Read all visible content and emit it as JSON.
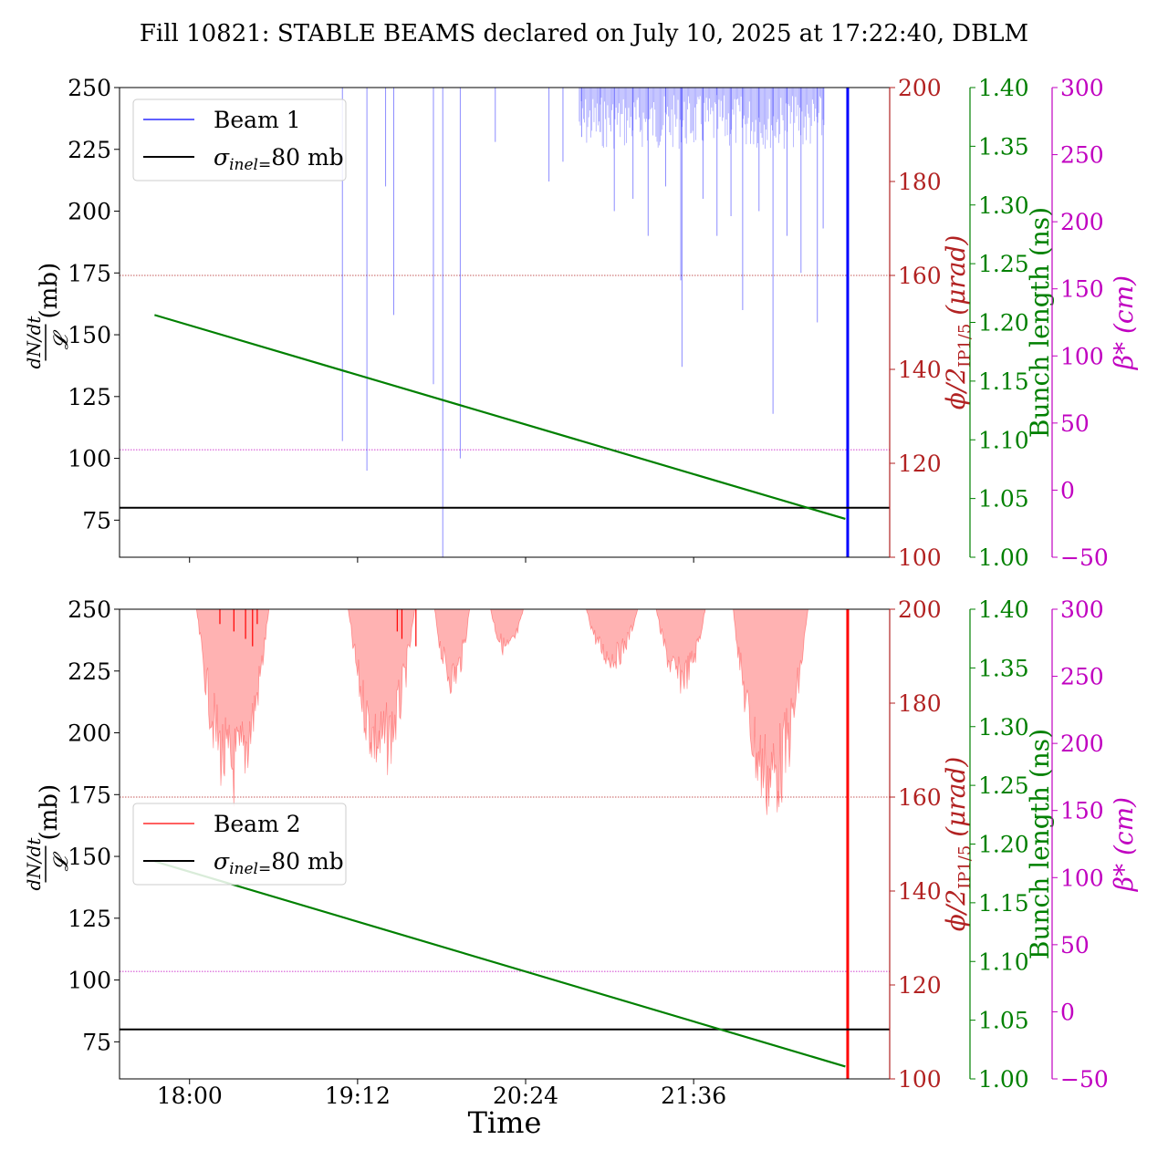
{
  "figure": {
    "title": "Fill 10821: STABLE BEAMS declared on July 10, 2025 at 17:22:40, DBLM",
    "xlabel": "Time"
  },
  "colors": {
    "beam1": "#0000ff",
    "beam2": "#ff0000",
    "fit": "#008000",
    "sigma": "#000000",
    "axis_phi": "#b22222",
    "axis_bunch": "#008000",
    "axis_beta": "#c000c0"
  },
  "chart_data": [
    {
      "type": "line",
      "panel": "top",
      "ylabel_num": "dN/dt",
      "ylabel_den": "𝓛",
      "ylabel_unit": "(mb)",
      "ylim": [
        60,
        250
      ],
      "yticks": [
        75,
        100,
        125,
        150,
        175,
        200,
        225,
        250
      ],
      "xlim_minutes": [
        1050,
        1380
      ],
      "xticks": [
        {
          "label": "18:00",
          "minutes": 1080
        },
        {
          "label": "19:12",
          "minutes": 1152
        },
        {
          "label": "20:24",
          "minutes": 1224
        },
        {
          "label": "21:36",
          "minutes": 1296
        }
      ],
      "legend": {
        "location": "upper left",
        "entries": [
          "Beam 1",
          "σinel=80 mb"
        ]
      },
      "series": [
        {
          "name": "Beam 1",
          "role": "beam",
          "color": "#0000ff",
          "style": "spiky",
          "spikes": [
            {
              "t": 1145.5,
              "y": 107
            },
            {
              "t": 1156.0,
              "y": 95
            },
            {
              "t": 1164.0,
              "y": 210
            },
            {
              "t": 1167.5,
              "y": 158
            },
            {
              "t": 1184.5,
              "y": 130
            },
            {
              "t": 1188.5,
              "y": 60
            },
            {
              "t": 1196.0,
              "y": 100
            },
            {
              "t": 1211.0,
              "y": 228
            },
            {
              "t": 1234.0,
              "y": 212
            },
            {
              "t": 1240.0,
              "y": 220
            },
            {
              "t": 1248.0,
              "y": 230
            },
            {
              "t": 1256.0,
              "y": 232
            },
            {
              "t": 1262.0,
              "y": 200
            },
            {
              "t": 1270.0,
              "y": 205
            },
            {
              "t": 1276.5,
              "y": 190
            },
            {
              "t": 1284.0,
              "y": 210
            },
            {
              "t": 1290.5,
              "y": 172
            },
            {
              "t": 1291.0,
              "y": 137
            },
            {
              "t": 1300.0,
              "y": 205
            },
            {
              "t": 1306.0,
              "y": 190
            },
            {
              "t": 1312.0,
              "y": 198
            },
            {
              "t": 1317.0,
              "y": 160
            },
            {
              "t": 1324.0,
              "y": 200
            },
            {
              "t": 1330.0,
              "y": 118
            },
            {
              "t": 1336.0,
              "y": 190
            },
            {
              "t": 1342.0,
              "y": 175
            },
            {
              "t": 1349.0,
              "y": 155
            },
            {
              "t": 1351.5,
              "y": 193
            }
          ],
          "dense_region": [
            1247,
            1352
          ],
          "end_spike_t": 1362.0
        },
        {
          "name": "fit",
          "role": "fit",
          "color": "#008000",
          "x": [
            1065,
            1361
          ],
          "y": [
            158,
            75.5
          ]
        },
        {
          "name": "σinel=80 mb",
          "role": "reference",
          "color": "#000000",
          "y": 80
        },
        {
          "name": "φ/2 IP1/5 reference",
          "role": "reference-dotted",
          "color": "#b22222",
          "y": 174
        },
        {
          "name": "β* reference",
          "role": "reference-dotted",
          "color": "#c000c0",
          "y": 103.5
        }
      ],
      "right_axes": [
        {
          "label_prefix": "ϕ/2",
          "label_sub": "IP1/5",
          "label_unit": "(μrad)",
          "lim": [
            100,
            200
          ],
          "ticks": [
            100,
            120,
            140,
            160,
            180,
            200
          ],
          "color": "#b22222"
        },
        {
          "label": "Bunch length (ns)",
          "lim": [
            1.0,
            1.4
          ],
          "ticks": [
            "1.00",
            "1.05",
            "1.10",
            "1.15",
            "1.20",
            "1.25",
            "1.30",
            "1.35",
            "1.40"
          ],
          "color": "#008000"
        },
        {
          "label": "β* (cm)",
          "lim": [
            -50,
            300
          ],
          "ticks": [
            "−50",
            "0",
            "50",
            "100",
            "150",
            "200",
            "250",
            "300"
          ],
          "color": "#c000c0"
        }
      ]
    },
    {
      "type": "line",
      "panel": "bottom",
      "ylabel_num": "dN/dt",
      "ylabel_den": "𝓛",
      "ylabel_unit": "(mb)",
      "ylim": [
        60,
        250
      ],
      "yticks": [
        75,
        100,
        125,
        150,
        175,
        200,
        225,
        250
      ],
      "xlim_minutes": [
        1050,
        1380
      ],
      "xticks": [
        {
          "label": "18:00",
          "minutes": 1080
        },
        {
          "label": "19:12",
          "minutes": 1152
        },
        {
          "label": "20:24",
          "minutes": 1224
        },
        {
          "label": "21:36",
          "minutes": 1296
        }
      ],
      "legend": {
        "location": "center left",
        "entries": [
          "Beam 2",
          "σinel=80 mb"
        ]
      },
      "series": [
        {
          "name": "Beam 2",
          "role": "beam",
          "color": "#ff0000",
          "style": "dense-band",
          "bands": [
            {
              "t0": 1083.0,
              "t1": 1114.0,
              "min_y": 168
            },
            {
              "t0": 1148.0,
              "t1": 1176.5,
              "min_y": 180
            },
            {
              "t0": 1185.0,
              "t1": 1200.0,
              "min_y": 215
            },
            {
              "t0": 1209.0,
              "t1": 1223.0,
              "min_y": 230
            },
            {
              "t0": 1250.0,
              "t1": 1272.0,
              "min_y": 225
            },
            {
              "t0": 1280.0,
              "t1": 1301.0,
              "min_y": 215
            },
            {
              "t0": 1313.0,
              "t1": 1345.0,
              "min_y": 163
            }
          ],
          "end_spike_t": 1362.0
        },
        {
          "name": "fit",
          "role": "fit",
          "color": "#008000",
          "x": [
            1065,
            1361
          ],
          "y": [
            148,
            65
          ]
        },
        {
          "name": "σinel=80 mb",
          "role": "reference",
          "color": "#000000",
          "y": 80
        },
        {
          "name": "φ/2 IP1/5 reference",
          "role": "reference-dotted",
          "color": "#b22222",
          "y": 174
        },
        {
          "name": "β* reference",
          "role": "reference-dotted",
          "color": "#c000c0",
          "y": 103.5
        }
      ],
      "right_axes": [
        {
          "label_prefix": "ϕ/2",
          "label_sub": "IP1/5",
          "label_unit": "(μrad)",
          "lim": [
            100,
            200
          ],
          "ticks": [
            100,
            120,
            140,
            160,
            180,
            200
          ],
          "color": "#b22222"
        },
        {
          "label": "Bunch length (ns)",
          "lim": [
            1.0,
            1.4
          ],
          "ticks": [
            "1.00",
            "1.05",
            "1.10",
            "1.15",
            "1.20",
            "1.25",
            "1.30",
            "1.35",
            "1.40"
          ],
          "color": "#008000"
        },
        {
          "label": "β* (cm)",
          "lim": [
            -50,
            300
          ],
          "ticks": [
            "−50",
            "0",
            "50",
            "100",
            "150",
            "200",
            "250",
            "300"
          ],
          "color": "#c000c0"
        }
      ]
    }
  ]
}
